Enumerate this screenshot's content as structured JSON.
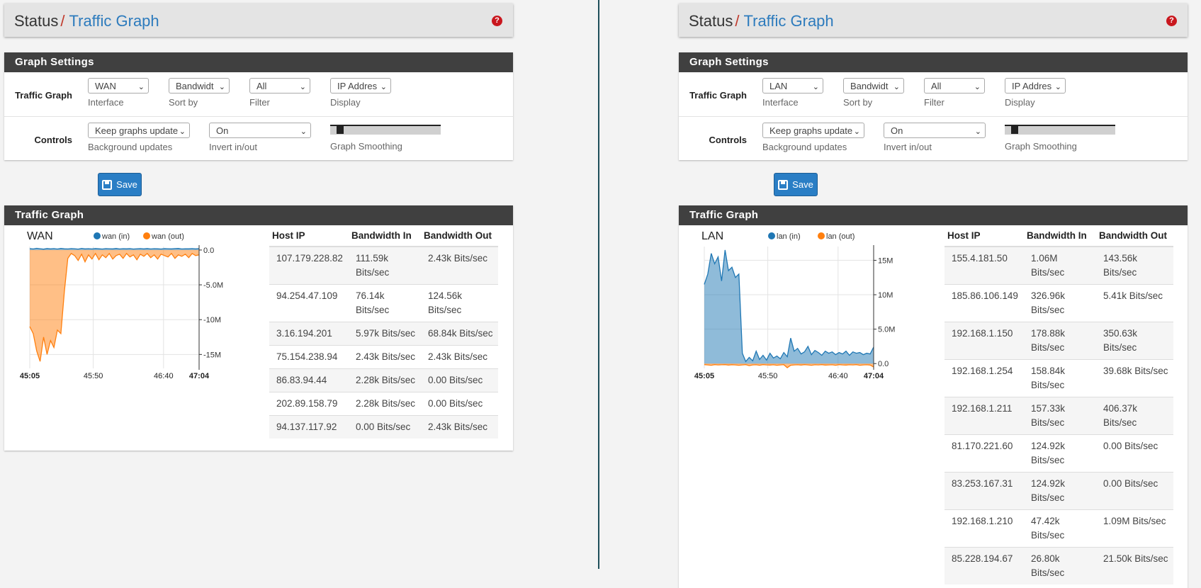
{
  "left": {
    "breadcrumb": {
      "parent": "Status",
      "separator": "/",
      "current": "Traffic Graph"
    },
    "help_icon": "?",
    "settings": {
      "title": "Graph Settings",
      "row1_label": "Traffic Graph",
      "interface": {
        "value": "WAN",
        "help": "Interface"
      },
      "sort_by": {
        "value": "Bandwidt",
        "help": "Sort by"
      },
      "filter": {
        "value": "All",
        "help": "Filter"
      },
      "display": {
        "value": "IP Addres",
        "help": "Display"
      },
      "row2_label": "Controls",
      "background_updates": {
        "value": "Keep graphs update",
        "help": "Background updates"
      },
      "invert": {
        "value": "On",
        "help": "Invert in/out"
      },
      "smoothing": {
        "help": "Graph Smoothing",
        "level": 0.05
      }
    },
    "save_label": "Save",
    "traffic": {
      "title": "Traffic Graph",
      "table_headers": [
        "Host IP",
        "Bandwidth In",
        "Bandwidth Out"
      ],
      "rows": [
        [
          "107.179.228.82",
          "111.59k Bits/sec",
          "2.43k Bits/sec"
        ],
        [
          "94.254.47.109",
          "76.14k Bits/sec",
          "124.56k Bits/sec"
        ],
        [
          "3.16.194.201",
          "5.97k Bits/sec",
          "68.84k Bits/sec"
        ],
        [
          "75.154.238.94",
          "2.43k Bits/sec",
          "2.43k Bits/sec"
        ],
        [
          "86.83.94.44",
          "2.28k Bits/sec",
          "0.00 Bits/sec"
        ],
        [
          "202.89.158.79",
          "2.28k Bits/sec",
          "0.00 Bits/sec"
        ],
        [
          "94.137.117.92",
          "0.00 Bits/sec",
          "2.43k Bits/sec"
        ]
      ]
    }
  },
  "right": {
    "breadcrumb": {
      "parent": "Status",
      "separator": "/",
      "current": "Traffic Graph"
    },
    "help_icon": "?",
    "settings": {
      "title": "Graph Settings",
      "row1_label": "Traffic Graph",
      "interface": {
        "value": "LAN",
        "help": "Interface"
      },
      "sort_by": {
        "value": "Bandwidt",
        "help": "Sort by"
      },
      "filter": {
        "value": "All",
        "help": "Filter"
      },
      "display": {
        "value": "IP Addres",
        "help": "Display"
      },
      "row2_label": "Controls",
      "background_updates": {
        "value": "Keep graphs update",
        "help": "Background updates"
      },
      "invert": {
        "value": "On",
        "help": "Invert in/out"
      },
      "smoothing": {
        "help": "Graph Smoothing",
        "level": 0.05
      }
    },
    "save_label": "Save",
    "traffic": {
      "title": "Traffic Graph",
      "table_headers": [
        "Host IP",
        "Bandwidth In",
        "Bandwidth Out"
      ],
      "rows": [
        [
          "155.4.181.50",
          "1.06M Bits/sec",
          "143.56k Bits/sec"
        ],
        [
          "185.86.106.149",
          "326.96k Bits/sec",
          "5.41k Bits/sec"
        ],
        [
          "192.168.1.150",
          "178.88k Bits/sec",
          "350.63k Bits/sec"
        ],
        [
          "192.168.1.254",
          "158.84k Bits/sec",
          "39.68k Bits/sec"
        ],
        [
          "192.168.1.211",
          "157.33k Bits/sec",
          "406.37k Bits/sec"
        ],
        [
          "81.170.221.60",
          "124.92k Bits/sec",
          "0.00 Bits/sec"
        ],
        [
          "83.253.167.31",
          "124.92k Bits/sec",
          "0.00 Bits/sec"
        ],
        [
          "192.168.1.210",
          "47.42k Bits/sec",
          "1.09M Bits/sec"
        ],
        [
          "85.228.194.67",
          "26.80k Bits/sec",
          "21.50k Bits/sec"
        ]
      ]
    }
  },
  "chart_data": [
    {
      "type": "area",
      "title": "WAN",
      "x_ticks": [
        "45:05",
        "45:50",
        "46:40",
        "47:04"
      ],
      "y_ticks": [
        "0.0",
        "-5.0M",
        "-10M",
        "-15M"
      ],
      "ylim": [
        -17000000,
        500000
      ],
      "series": [
        {
          "name": "wan (in)",
          "color": "#1f77b4",
          "values": [
            200000,
            150000,
            250000,
            180000,
            120000,
            220000,
            160000,
            200000,
            140000,
            230000,
            170000,
            150000,
            210000,
            180000,
            130000,
            240000,
            160000,
            190000,
            150000,
            220000,
            170000,
            140000,
            200000,
            180000,
            160000,
            230000,
            150000,
            190000,
            170000,
            210000,
            140000,
            180000,
            200000,
            160000,
            220000,
            150000,
            190000,
            170000,
            140000,
            210000,
            180000,
            160000,
            200000,
            230000,
            150000,
            180000,
            170000,
            200000,
            160000,
            210000
          ]
        },
        {
          "name": "wan (out)",
          "color": "#ff7f0e",
          "values": [
            -11000000,
            -12000000,
            -14500000,
            -16000000,
            -12500000,
            -15000000,
            -13000000,
            -14000000,
            -11500000,
            -12000000,
            -6000000,
            -1200000,
            -500000,
            -800000,
            -1500000,
            -600000,
            -1700000,
            -700000,
            -1300000,
            -500000,
            -1400000,
            -700000,
            -1100000,
            -500000,
            -1300000,
            -800000,
            -600000,
            -1200000,
            -500000,
            -1000000,
            -700000,
            -1400000,
            -600000,
            -900000,
            -500000,
            -1100000,
            -700000,
            -1300000,
            -600000,
            -800000,
            -1000000,
            -500000,
            -1200000,
            -700000,
            -900000,
            -600000,
            -1100000,
            -500000,
            -800000,
            -700000
          ]
        }
      ]
    },
    {
      "type": "area",
      "title": "LAN",
      "x_ticks": [
        "45:05",
        "45:50",
        "46:40",
        "47:04"
      ],
      "y_ticks": [
        "15M",
        "10M",
        "5.0M",
        "0.0"
      ],
      "ylim": [
        -700000,
        17000000
      ],
      "series": [
        {
          "name": "lan (in)",
          "color": "#1f77b4",
          "values": [
            11500000,
            13000000,
            16000000,
            14500000,
            15500000,
            12000000,
            16500000,
            13500000,
            14000000,
            12500000,
            13000000,
            1500000,
            300000,
            900000,
            400000,
            1800000,
            600000,
            1200000,
            500000,
            1500000,
            800000,
            1100000,
            700000,
            1600000,
            1000000,
            3700000,
            1800000,
            2200000,
            1400000,
            1700000,
            2500000,
            1300000,
            1900000,
            1600000,
            1200000,
            1800000,
            1500000,
            1700000,
            1300000,
            1600000,
            1400000,
            1800000,
            1200000,
            1700000,
            1500000,
            1600000,
            1300000,
            1500000,
            1400000,
            2400000
          ]
        },
        {
          "name": "lan (out)",
          "color": "#ff7f0e",
          "values": [
            -150000,
            -200000,
            -250000,
            -150000,
            -200000,
            -180000,
            -150000,
            -220000,
            -160000,
            -200000,
            -250000,
            -200000,
            -150000,
            -300000,
            -200000,
            -180000,
            -250000,
            -150000,
            -200000,
            -220000,
            -180000,
            -250000,
            -200000,
            -150000,
            -600000,
            -250000,
            -200000,
            -180000,
            -220000,
            -150000,
            -200000,
            -250000,
            -180000,
            -200000,
            -150000,
            -220000,
            -200000,
            -180000,
            -250000,
            -150000,
            -200000,
            -220000,
            -180000,
            -200000,
            -150000,
            -250000,
            -200000,
            -180000,
            -220000,
            -500000
          ]
        }
      ]
    }
  ]
}
